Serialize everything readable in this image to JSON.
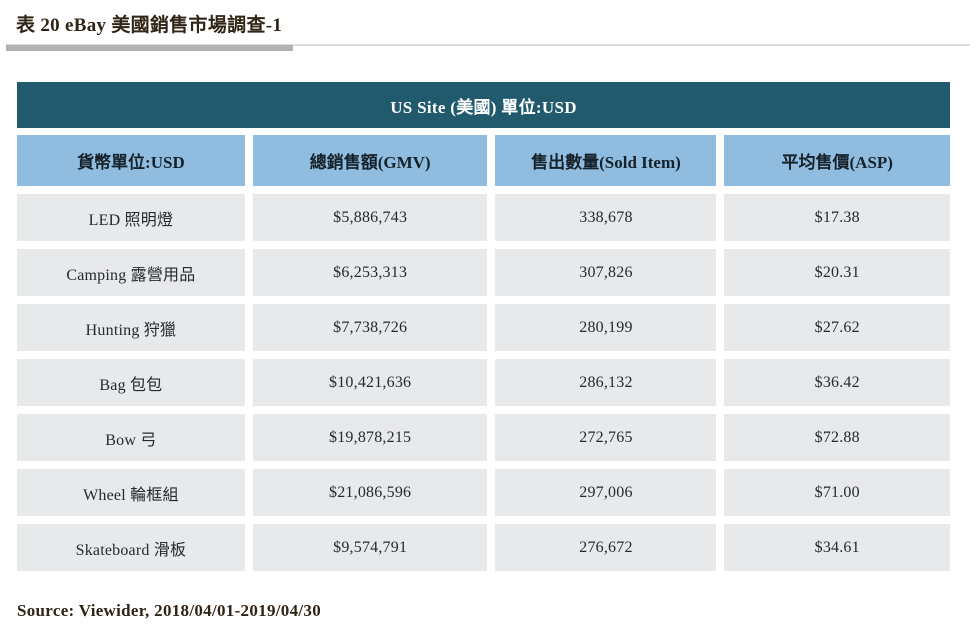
{
  "page": {
    "title": "表 20 eBay 美國銷售市場調查-1",
    "source": "Source: Viewider, 2018/04/01-2019/04/30"
  },
  "table": {
    "banner": "US Site (美國) 單位:USD",
    "columns": [
      "貨幣單位:USD",
      "總銷售額(GMV)",
      "售出數量(Sold Item)",
      "平均售價(ASP)"
    ],
    "rows": [
      {
        "category": "LED 照明燈",
        "gmv": "$5,886,743",
        "sold": "338,678",
        "asp": "$17.38"
      },
      {
        "category": "Camping 露營用品",
        "gmv": "$6,253,313",
        "sold": "307,826",
        "asp": "$20.31"
      },
      {
        "category": "Hunting 狩獵",
        "gmv": "$7,738,726",
        "sold": "280,199",
        "asp": "$27.62"
      },
      {
        "category": "Bag 包包",
        "gmv": "$10,421,636",
        "sold": "286,132",
        "asp": "$36.42"
      },
      {
        "category": "Bow 弓",
        "gmv": "$19,878,215",
        "sold": "272,765",
        "asp": "$72.88"
      },
      {
        "category": "Wheel 輪框組",
        "gmv": "$21,086,596",
        "sold": "297,006",
        "asp": "$71.00"
      },
      {
        "category": "Skateboard 滑板",
        "gmv": "$9,574,791",
        "sold": "276,672",
        "asp": "$34.61"
      }
    ],
    "colors": {
      "banner_bg": "#215a6c",
      "header_bg": "#90bddf",
      "row_bg": "#e8e9ea",
      "title_color": "#302416",
      "cell_color": "#26292e"
    }
  }
}
